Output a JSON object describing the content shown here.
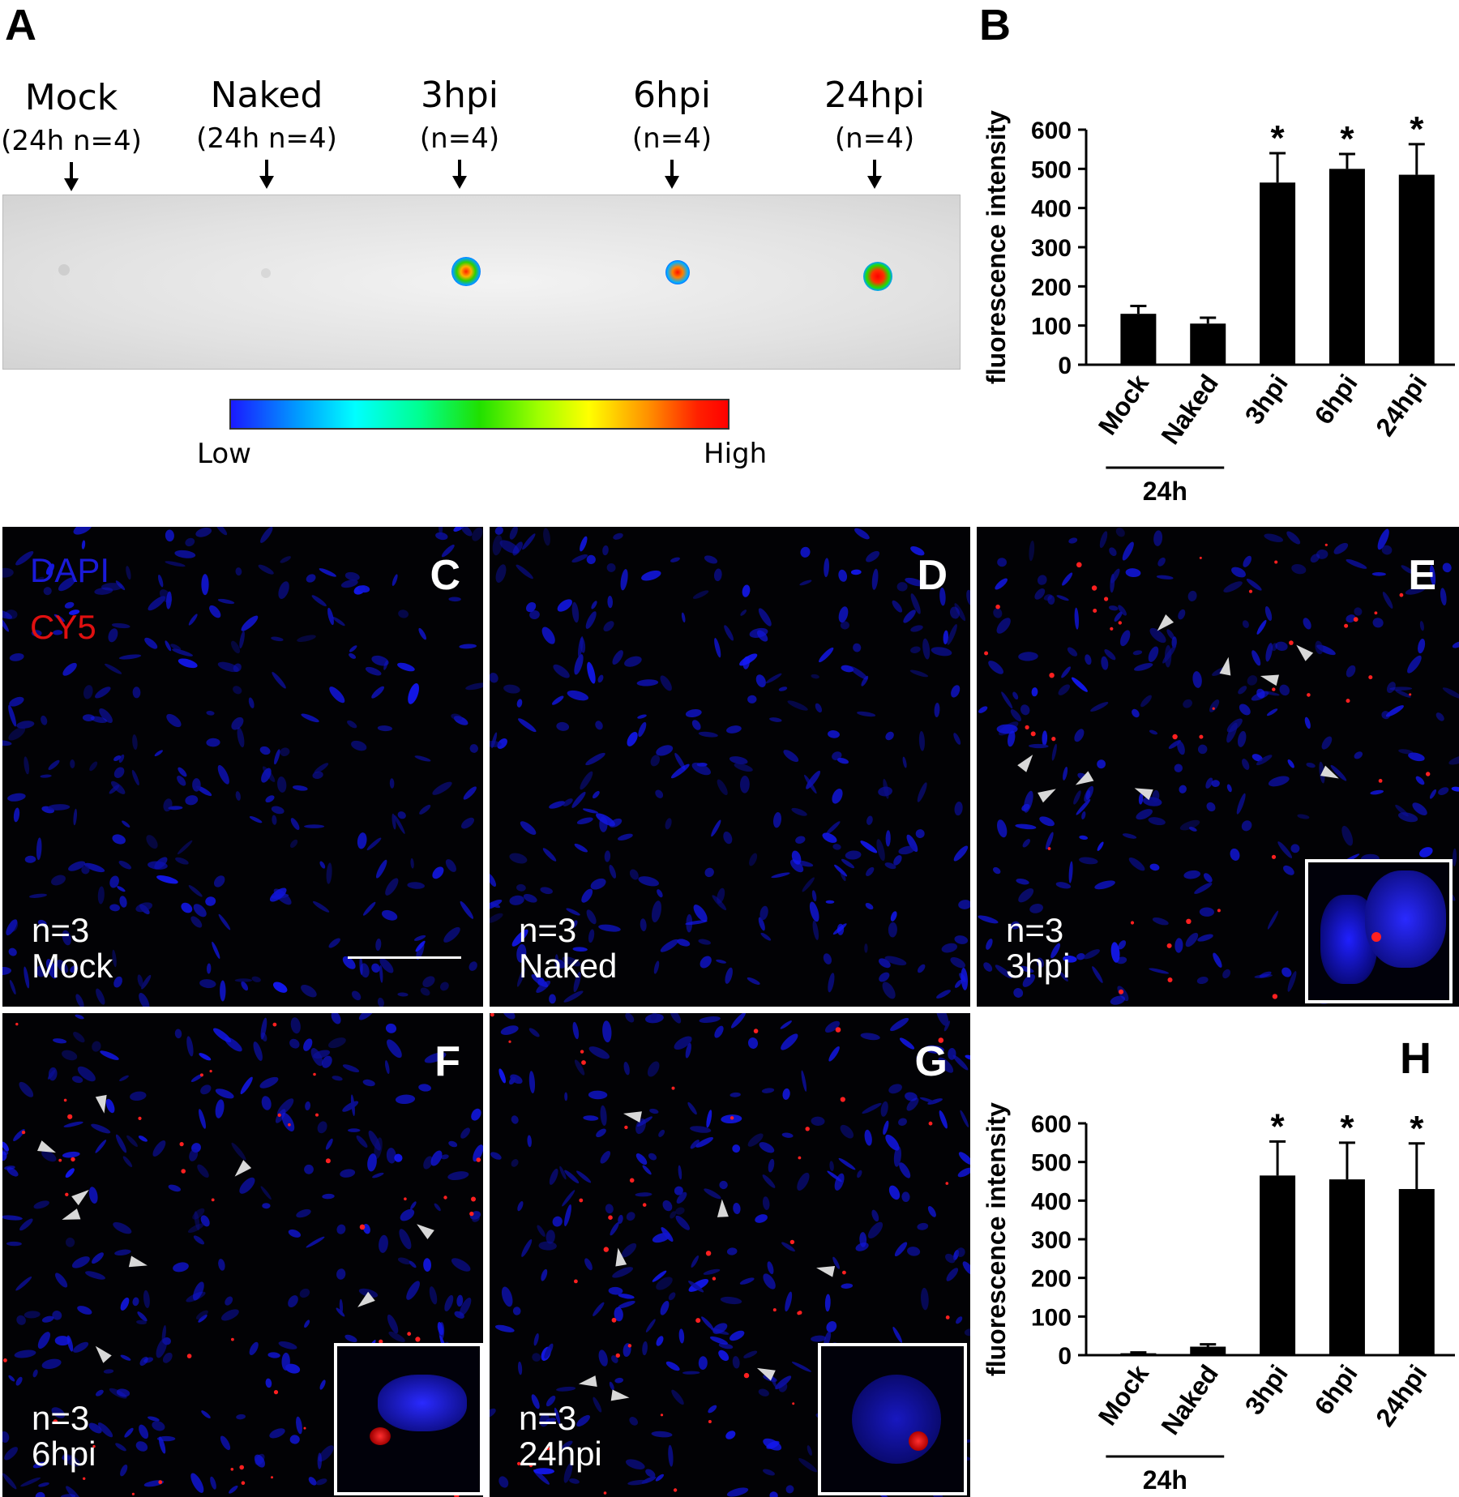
{
  "panel_A": {
    "letter": "A",
    "groups": [
      {
        "name": "Mock",
        "n": "(24h n=4)"
      },
      {
        "name": "Naked",
        "n": "(24h n=4)"
      },
      {
        "name": "3hpi",
        "n": "(n=4)"
      },
      {
        "name": "6hpi",
        "n": "(n=4)"
      },
      {
        "name": "24hpi",
        "n": "(n=4)"
      }
    ],
    "colorbar": {
      "low": "Low",
      "high": "High"
    }
  },
  "panel_B": {
    "letter": "B",
    "group_label": "24h"
  },
  "panel_H": {
    "letter": "H",
    "group_label": "24h"
  },
  "micrographs": {
    "legend_dapi": "DAPI",
    "legend_cy5": "CY5",
    "panels": [
      {
        "letter": "C",
        "n": "n=3",
        "label": "Mock"
      },
      {
        "letter": "D",
        "n": "n=3",
        "label": "Naked"
      },
      {
        "letter": "E",
        "n": "n=3",
        "label": "3hpi"
      },
      {
        "letter": "F",
        "n": "n=3",
        "label": "6hpi"
      },
      {
        "letter": "G",
        "n": "n=3",
        "label": "24hpi"
      }
    ]
  },
  "chart_data": [
    {
      "id": "B",
      "type": "bar",
      "categories": [
        "Mock",
        "Naked",
        "3hpi",
        "6hpi",
        "24hpi"
      ],
      "values": [
        130,
        105,
        465,
        500,
        485
      ],
      "errors": [
        20,
        15,
        75,
        38,
        78
      ],
      "significance": [
        "",
        "",
        "*",
        "*",
        "*"
      ],
      "ylabel": "fluorescence intensity",
      "yticks": [
        "0",
        "100",
        "200",
        "300",
        "400",
        "500",
        "600"
      ],
      "ylim": [
        0,
        600
      ],
      "grid": false
    },
    {
      "id": "H",
      "type": "bar",
      "categories": [
        "Mock",
        "Naked",
        "3hpi",
        "6hpi",
        "24hpi"
      ],
      "values": [
        5,
        22,
        465,
        455,
        430
      ],
      "errors": [
        2,
        6,
        88,
        95,
        118
      ],
      "significance": [
        "",
        "",
        "*",
        "*",
        "*"
      ],
      "ylabel": "fluorescence intensity",
      "yticks": [
        "0",
        "100",
        "200",
        "300",
        "400",
        "500",
        "600"
      ],
      "ylim": [
        0,
        600
      ],
      "grid": false
    }
  ]
}
